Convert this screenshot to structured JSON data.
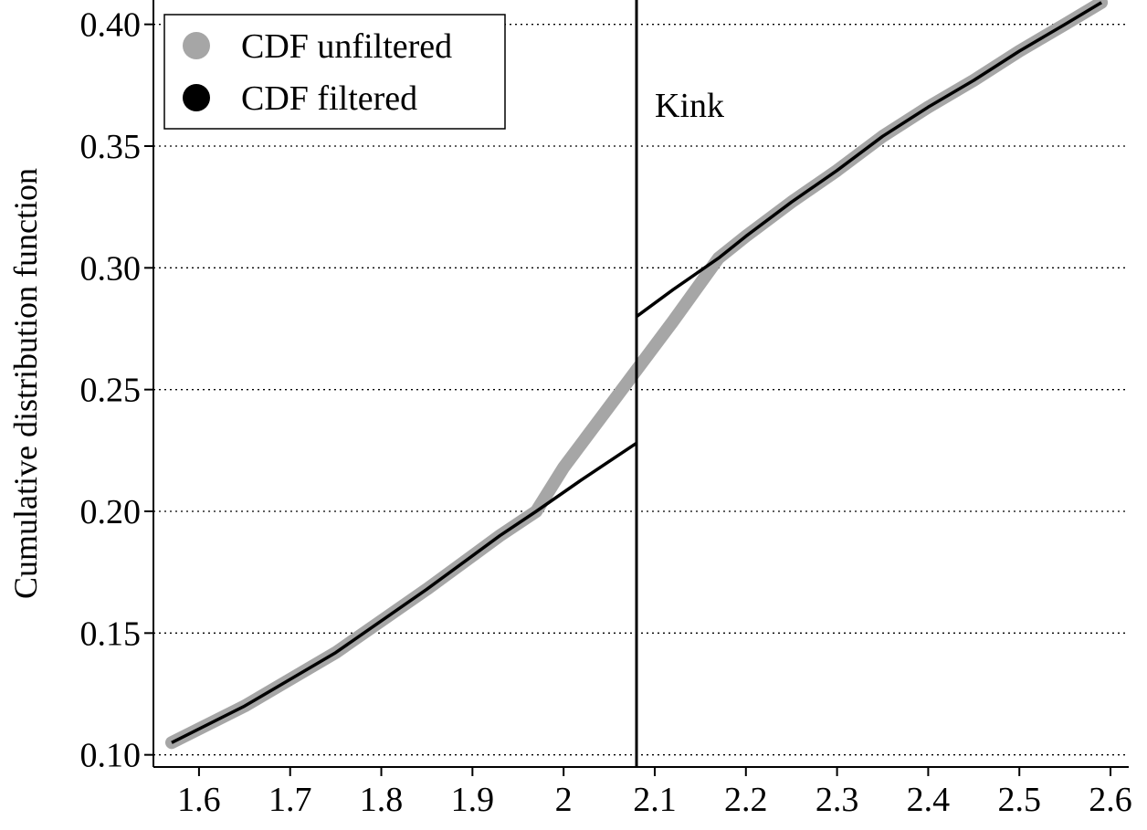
{
  "chart_data": {
    "type": "line",
    "title": "",
    "xlabel": "",
    "ylabel": "Cumulative distribution function",
    "xlim": [
      1.55,
      2.62
    ],
    "ylim": [
      0.095,
      0.41
    ],
    "x_ticks": [
      1.6,
      1.7,
      1.8,
      1.9,
      2.0,
      2.1,
      2.2,
      2.3,
      2.4,
      2.5,
      2.6
    ],
    "x_tick_labels": [
      "1.6",
      "1.7",
      "1.8",
      "1.9",
      "2",
      "2.1",
      "2.2",
      "2.3",
      "2.4",
      "2.5",
      "2.6"
    ],
    "y_ticks": [
      0.1,
      0.15,
      0.2,
      0.25,
      0.3,
      0.35,
      0.4
    ],
    "y_tick_labels": [
      "0.10",
      "0.15",
      "0.20",
      "0.25",
      "0.30",
      "0.35",
      "0.40"
    ],
    "grid": "horizontal-dotted",
    "legend_position": "top-left",
    "series": [
      {
        "name": "CDF unfiltered",
        "color": "#a6a6a6",
        "points": [
          [
            1.57,
            0.105
          ],
          [
            1.65,
            0.12
          ],
          [
            1.75,
            0.142
          ],
          [
            1.85,
            0.168
          ],
          [
            1.93,
            0.19
          ],
          [
            1.97,
            0.2
          ],
          [
            2.0,
            0.218
          ],
          [
            2.04,
            0.238
          ],
          [
            2.08,
            0.258
          ],
          [
            2.12,
            0.278
          ],
          [
            2.17,
            0.304
          ],
          [
            2.2,
            0.313
          ],
          [
            2.25,
            0.327
          ],
          [
            2.3,
            0.34
          ],
          [
            2.35,
            0.354
          ],
          [
            2.4,
            0.366
          ],
          [
            2.45,
            0.377
          ],
          [
            2.5,
            0.389
          ],
          [
            2.55,
            0.4
          ],
          [
            2.59,
            0.409
          ]
        ]
      },
      {
        "name": "CDF filtered",
        "color": "#000000",
        "segments": [
          [
            [
              1.57,
              0.105
            ],
            [
              1.65,
              0.12
            ],
            [
              1.75,
              0.142
            ],
            [
              1.85,
              0.168
            ],
            [
              1.93,
              0.19
            ],
            [
              1.97,
              0.2
            ],
            [
              2.02,
              0.213
            ],
            [
              2.08,
              0.228
            ]
          ],
          [
            [
              2.08,
              0.28
            ],
            [
              2.12,
              0.291
            ],
            [
              2.17,
              0.304
            ],
            [
              2.2,
              0.313
            ],
            [
              2.25,
              0.327
            ],
            [
              2.3,
              0.34
            ],
            [
              2.35,
              0.354
            ],
            [
              2.4,
              0.366
            ],
            [
              2.45,
              0.377
            ],
            [
              2.5,
              0.389
            ],
            [
              2.55,
              0.4
            ],
            [
              2.59,
              0.409
            ]
          ]
        ]
      }
    ],
    "vline": {
      "x": 2.08,
      "label": "Kink",
      "color": "#000000"
    }
  }
}
